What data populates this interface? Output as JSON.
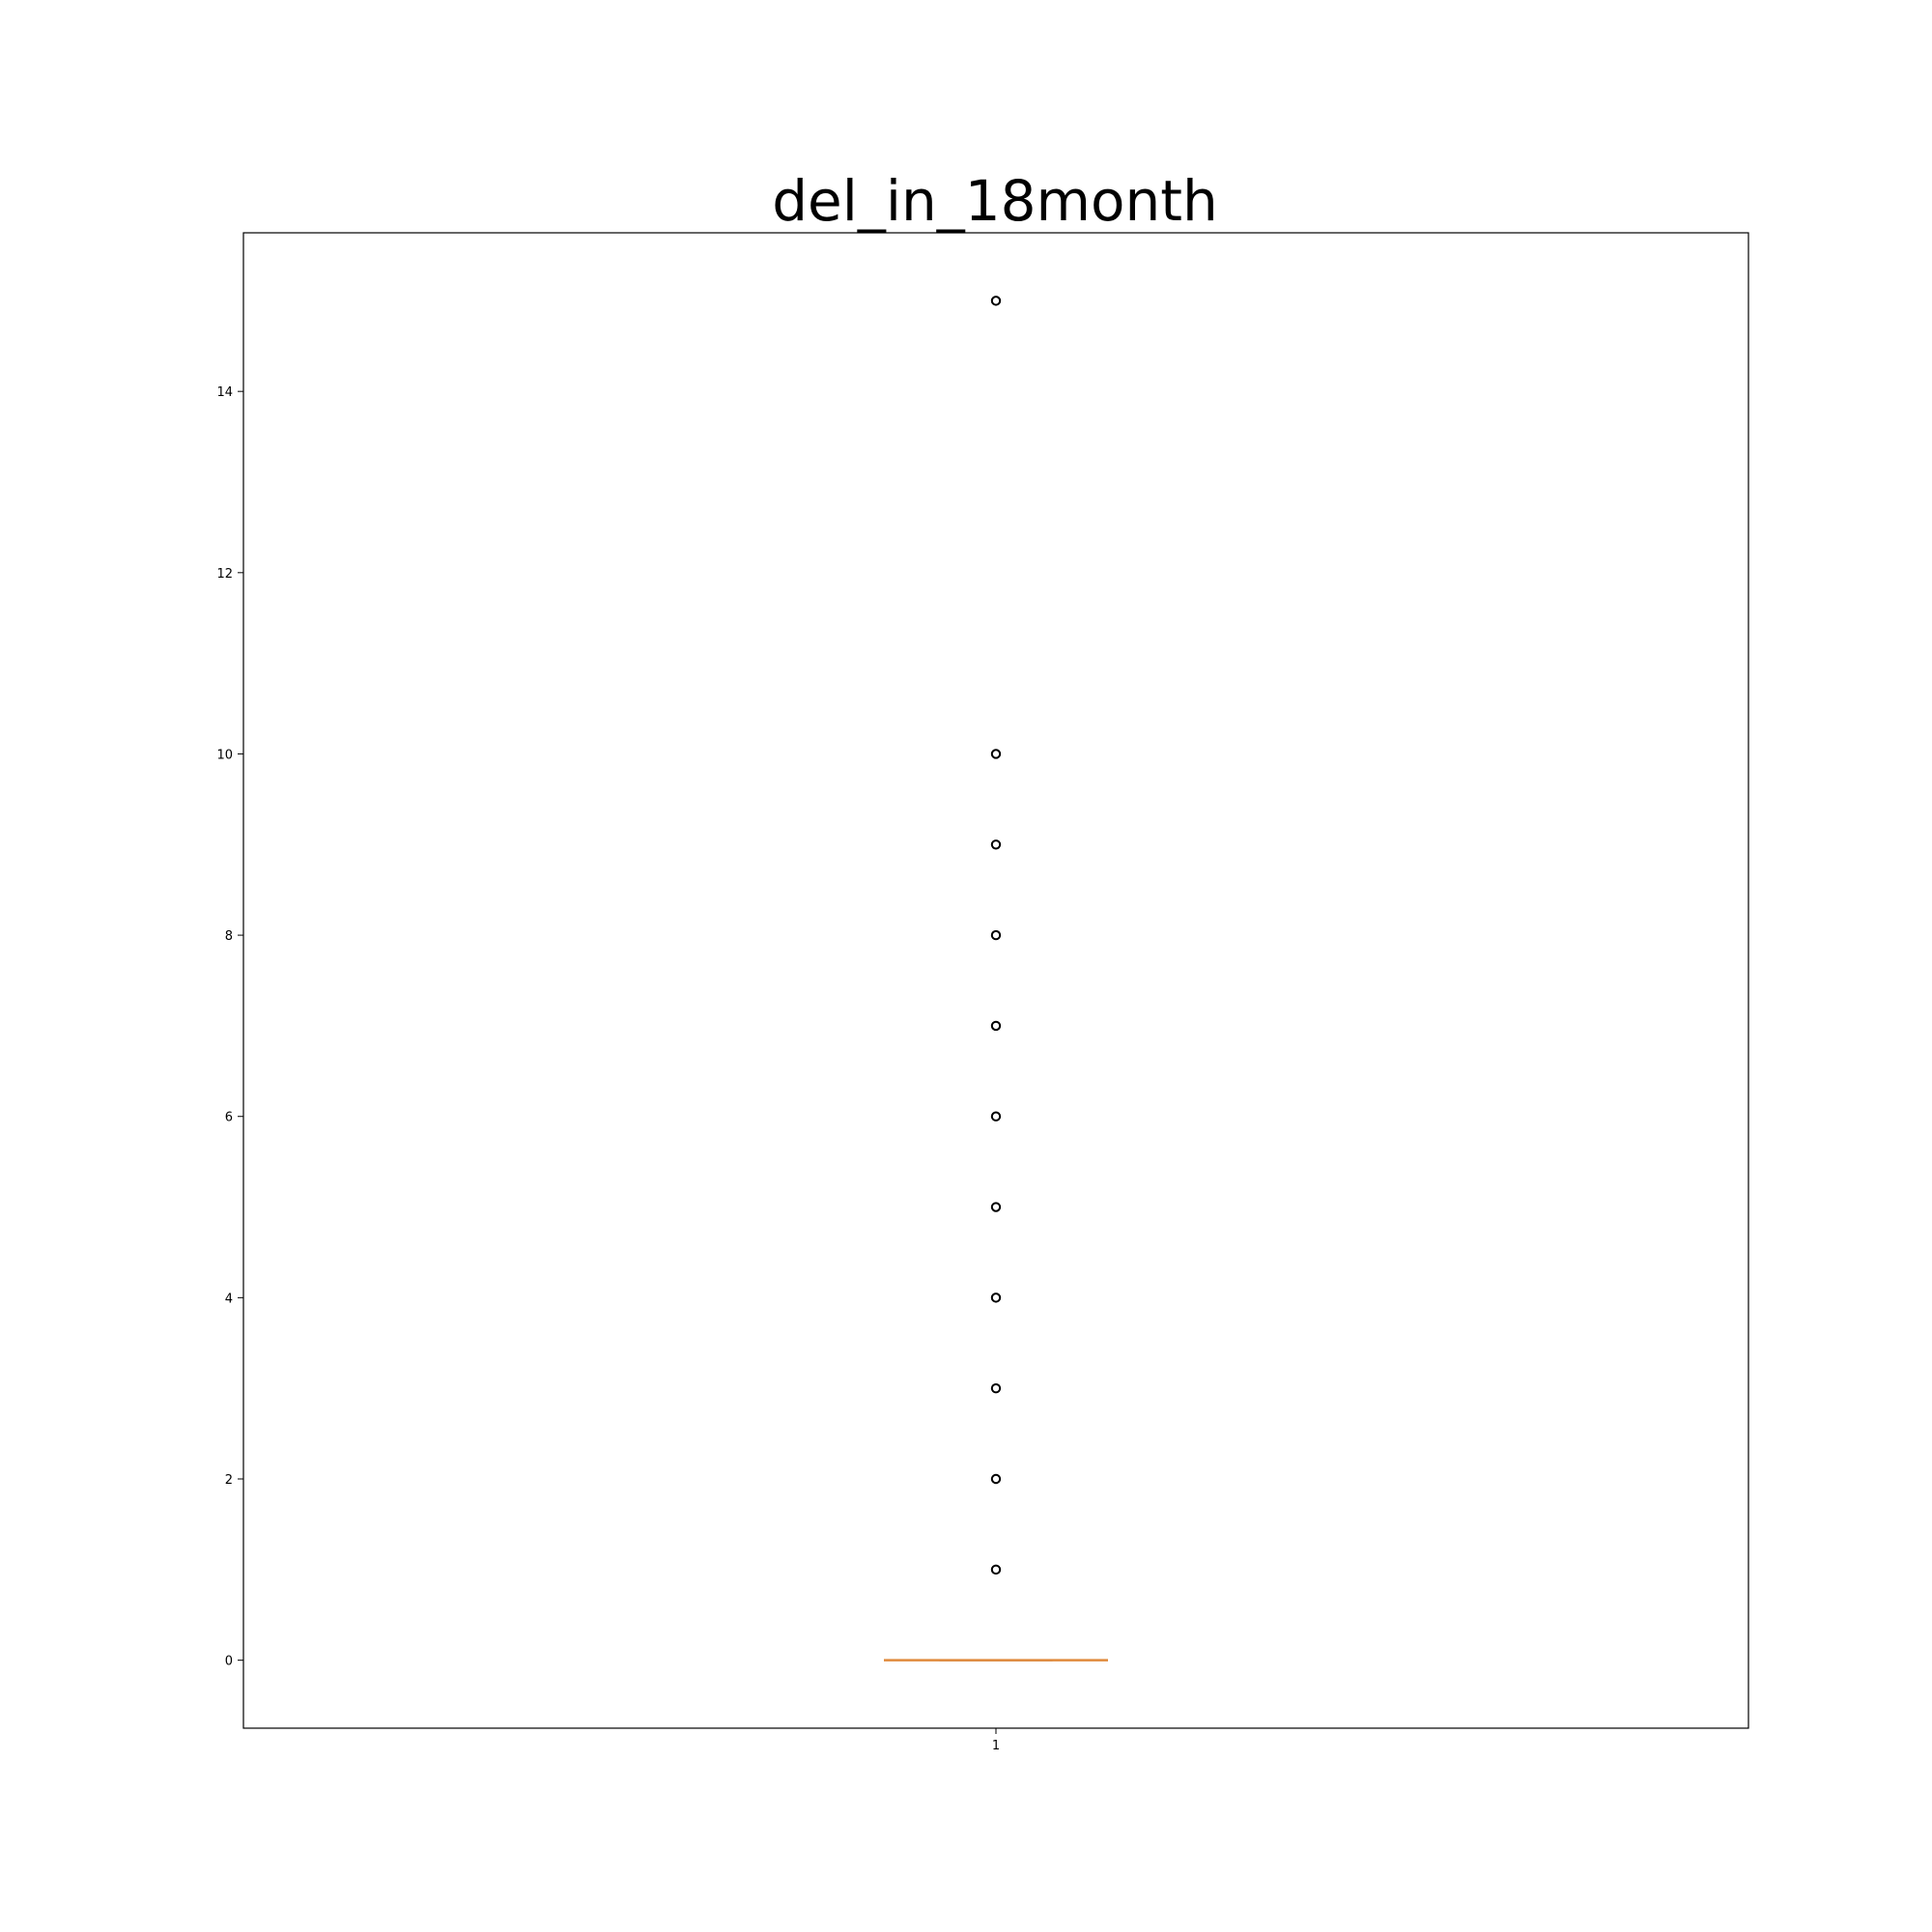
{
  "chart_data": {
    "type": "box",
    "title": "del_in_18month",
    "xlabel": "",
    "ylabel": "",
    "categories": [
      "1"
    ],
    "ylim": [
      -0.75,
      15.75
    ],
    "yticks": [
      0,
      2,
      4,
      6,
      8,
      10,
      12,
      14
    ],
    "grid": false,
    "box": {
      "median": 0,
      "q1": 0,
      "q3": 0,
      "whisker_low": 0,
      "whisker_high": 0,
      "outliers": [
        1,
        2,
        3,
        4,
        5,
        6,
        7,
        8,
        9,
        10,
        15
      ]
    },
    "colors": {
      "median": "#e08a3c",
      "box": "#000000",
      "outlier": "#000000"
    }
  }
}
